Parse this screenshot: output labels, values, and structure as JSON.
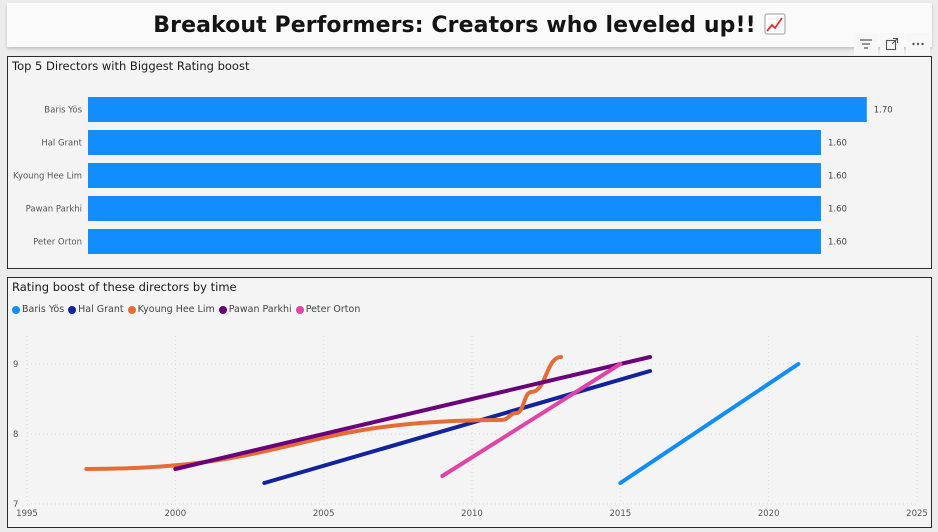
{
  "header": {
    "title": "Breakout Performers: Creators who leveled up!!",
    "icon": "chart-increasing-icon"
  },
  "toolbar": {
    "icons": [
      "filter-icon",
      "focus-mode-icon",
      "more-options-icon"
    ]
  },
  "chart_data": [
    {
      "type": "bar",
      "orientation": "horizontal",
      "title": "Top 5 Directors with Biggest Rating boost",
      "categories": [
        "Baris Yös",
        "Hal Grant",
        "Kyoung Hee Lim",
        "Pawan Parkhi",
        "Peter Orton"
      ],
      "values": [
        1.7,
        1.6,
        1.6,
        1.6,
        1.6
      ],
      "value_labels": [
        "1.70",
        "1.60",
        "1.60",
        "1.60",
        "1.60"
      ],
      "xlim": [
        0,
        1.79
      ],
      "color": "#118dff",
      "grid": false
    },
    {
      "type": "line",
      "title": "Rating boost of these directors by time",
      "legend_position": "top-left",
      "xlim": [
        1995,
        2025
      ],
      "ylim": [
        7,
        9.4
      ],
      "x_ticks": [
        "1995",
        "2000",
        "2005",
        "2010",
        "2015",
        "2020",
        "2025"
      ],
      "y_ticks": [
        "7",
        "8",
        "9"
      ],
      "grid": true,
      "series": [
        {
          "name": "Baris Yös",
          "color": "#118dff",
          "x": [
            2015,
            2021
          ],
          "y": [
            7.3,
            9.0
          ]
        },
        {
          "name": "Hal Grant",
          "color": "#12239e",
          "x": [
            2003,
            2016
          ],
          "y": [
            7.3,
            8.9
          ]
        },
        {
          "name": "Kyoung Hee Lim",
          "color": "#e66c37",
          "x": [
            1997,
            2011,
            2011.5,
            2012,
            2013
          ],
          "y": [
            7.5,
            8.2,
            8.3,
            8.6,
            9.1
          ]
        },
        {
          "name": "Pawan Parkhi",
          "color": "#6b007b",
          "x": [
            2000,
            2016
          ],
          "y": [
            7.5,
            9.1
          ]
        },
        {
          "name": "Peter Orton",
          "color": "#e044a7",
          "x": [
            2009,
            2015
          ],
          "y": [
            7.4,
            9.0
          ]
        }
      ]
    }
  ]
}
